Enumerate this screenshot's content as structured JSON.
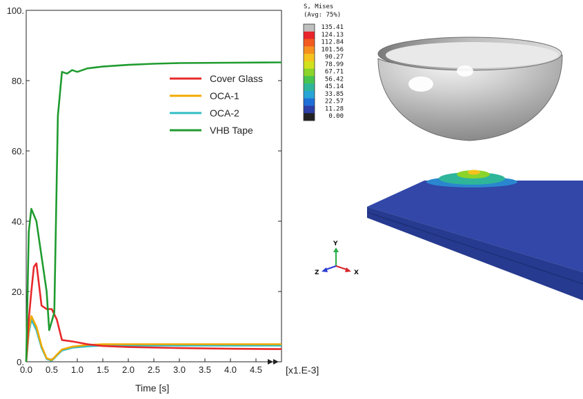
{
  "chart_data": {
    "type": "line",
    "xlabel": "Time [s]",
    "x_multiplier_label": "[x1.E-3]",
    "xlim": [
      0,
      5
    ],
    "ylim": [
      0,
      100
    ],
    "x_ticks": [
      "0.0",
      "0.5",
      "1.0",
      "1.5",
      "2.0",
      "2.5",
      "3.0",
      "3.5",
      "4.0",
      "4.5"
    ],
    "y_ticks": [
      "0.",
      "20.",
      "40.",
      "60.",
      "80.",
      "100."
    ],
    "legend_position": "top-right",
    "series": [
      {
        "name": "Cover Glass",
        "color": "#e8282a",
        "x": [
          0,
          0.05,
          0.1,
          0.15,
          0.2,
          0.3,
          0.4,
          0.5,
          0.6,
          0.7,
          0.9,
          1.2,
          1.5,
          2,
          3,
          4,
          5
        ],
        "y": [
          0,
          12,
          20,
          27,
          28,
          16,
          15,
          15,
          12,
          6.2,
          5.8,
          5,
          4.5,
          4.2,
          3.9,
          3.7,
          3.6
        ]
      },
      {
        "name": "OCA-1",
        "color": "#f2a900",
        "x": [
          0,
          0.05,
          0.1,
          0.2,
          0.3,
          0.4,
          0.5,
          0.6,
          0.7,
          0.9,
          1.2,
          1.5,
          2,
          3,
          4,
          5
        ],
        "y": [
          0,
          9,
          13,
          10,
          4.5,
          1,
          0.5,
          2,
          3.5,
          4.3,
          4.8,
          5,
          5,
          5,
          5,
          5
        ]
      },
      {
        "name": "OCA-2",
        "color": "#30bcc5",
        "x": [
          0,
          0.05,
          0.1,
          0.2,
          0.3,
          0.4,
          0.5,
          0.6,
          0.7,
          0.9,
          1.2,
          1.5,
          2,
          3,
          4,
          5
        ],
        "y": [
          0,
          8,
          12,
          9,
          4,
          0.8,
          0.3,
          1.8,
          3.2,
          4,
          4.4,
          4.6,
          4.6,
          4.6,
          4.6,
          4.6
        ]
      },
      {
        "name": "VHB Tape",
        "color": "#1e9b2e",
        "x": [
          0,
          0.05,
          0.1,
          0.2,
          0.3,
          0.4,
          0.45,
          0.55,
          0.62,
          0.7,
          0.8,
          0.9,
          1.0,
          1.2,
          1.5,
          2,
          2.5,
          3,
          4,
          5
        ],
        "y": [
          0,
          37,
          43.5,
          40,
          30,
          20,
          9,
          14,
          70,
          82.5,
          82,
          83,
          82.5,
          83.5,
          84,
          84.5,
          84.8,
          85,
          85.1,
          85.2
        ]
      }
    ]
  },
  "colorbar": {
    "title_line1": "S, Mises",
    "title_line2": "(Avg: 75%)",
    "labels": [
      "135.41",
      "124.13",
      "112.84",
      "101.56",
      "90.27",
      "78.99",
      "67.71",
      "56.42",
      "45.14",
      "33.85",
      "22.57",
      "11.28",
      "0.00"
    ],
    "colors": [
      "#bfbfbf",
      "#e8252a",
      "#f25a1e",
      "#f5901e",
      "#f5c21e",
      "#d2e11e",
      "#8bd42a",
      "#46c450",
      "#2fb59a",
      "#27a5d6",
      "#1f6fd9",
      "#2b3fa6",
      "#222222"
    ]
  },
  "triad": {
    "x_label": "X",
    "y_label": "Y",
    "z_label": "Z"
  }
}
